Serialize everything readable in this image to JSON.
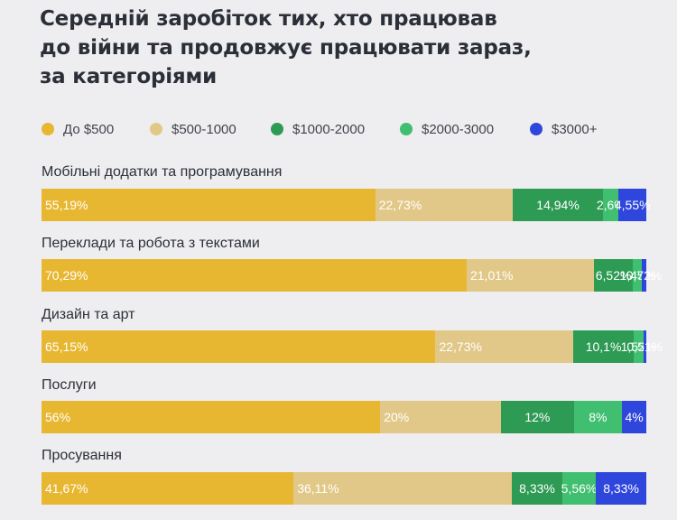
{
  "title_lines": [
    "Середній заробіток тих, хто працював",
    "до війни та продовжує працювати зараз,",
    "за категоріями"
  ],
  "colors": {
    "background": "#eeeef0",
    "title": "#2b2f38"
  },
  "chart_data": {
    "type": "bar",
    "orientation": "horizontal",
    "stacked": true,
    "title": "Середній заробіток тих, хто працював до війни та продовжує працювати зараз, за категоріями",
    "legend_position": "top",
    "categories": [
      "Мобільні додатки та програмування",
      "Переклади та робота з текстами",
      "Дизайн та арт",
      "Послуги",
      "Просування"
    ],
    "series": [
      {
        "name": "До $500",
        "color": "#e8b732",
        "values": [
          55.19,
          70.29,
          65.15,
          56,
          41.67
        ],
        "labels": [
          "55,19%",
          "70,29%",
          "65,15%",
          "56%",
          "41,67%"
        ]
      },
      {
        "name": "$500-1000",
        "color": "#e2c888",
        "values": [
          22.73,
          21.01,
          22.73,
          20,
          36.11
        ],
        "labels": [
          "22,73%",
          "21,01%",
          "22,73%",
          "20%",
          "36,11%"
        ]
      },
      {
        "name": "$1000-2000",
        "color": "#2e9b55",
        "values": [
          14.94,
          6.52,
          10.1,
          12,
          8.33
        ],
        "labels": [
          "14,94%",
          "6,52%",
          "10,1%",
          "12%",
          "8,33%"
        ]
      },
      {
        "name": "$2000-3000",
        "color": "#3fbf6f",
        "values": [
          2.6,
          1.45,
          1.52,
          8,
          5.56
        ],
        "labels": [
          "2,6%",
          "1,45%",
          "1,52%",
          "8%",
          "5,56%"
        ]
      },
      {
        "name": "$3000+",
        "color": "#2f46dd",
        "values": [
          4.55,
          0.72,
          0.51,
          4,
          8.33
        ],
        "labels": [
          "4,55%",
          "0,72%",
          "0,51%",
          "4%",
          "8,33%"
        ]
      }
    ]
  }
}
